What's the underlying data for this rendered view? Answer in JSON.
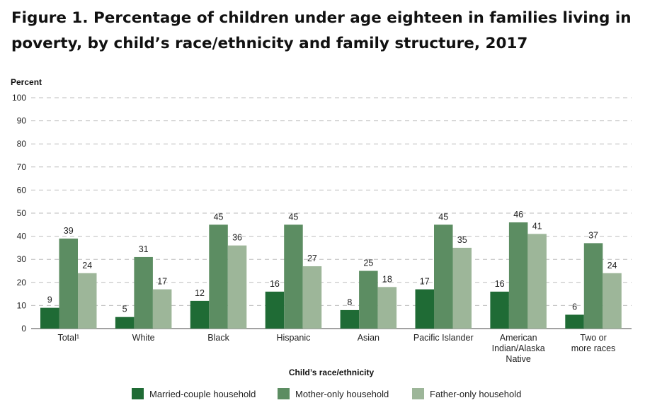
{
  "title": "Figure 1. Percentage of children under age eighteen in families living in poverty, by child’s race/ethnicity and family structure, 2017",
  "chart_data": {
    "type": "bar",
    "ylabel": "Percent",
    "xlabel": "Child’s race/ethnicity",
    "ylim": [
      0,
      100
    ],
    "yticks": [
      0,
      10,
      20,
      30,
      40,
      50,
      60,
      70,
      80,
      90,
      100
    ],
    "grid": true,
    "legend_position": "bottom",
    "categories": [
      [
        "Total¹"
      ],
      [
        "White"
      ],
      [
        "Black"
      ],
      [
        "Hispanic"
      ],
      [
        "Asian"
      ],
      [
        "Pacific Islander"
      ],
      [
        "American",
        "Indian/Alaska",
        "Native"
      ],
      [
        "Two or",
        "more races"
      ]
    ],
    "series": [
      {
        "name": "Married-couple household",
        "color": "#1f6b35",
        "values": [
          9,
          5,
          12,
          16,
          8,
          17,
          16,
          6
        ]
      },
      {
        "name": "Mother-only household",
        "color": "#5c8d62",
        "values": [
          39,
          31,
          45,
          45,
          25,
          45,
          46,
          37
        ]
      },
      {
        "name": "Father-only household",
        "color": "#9db699",
        "values": [
          24,
          17,
          36,
          27,
          18,
          35,
          41,
          24
        ]
      }
    ]
  }
}
